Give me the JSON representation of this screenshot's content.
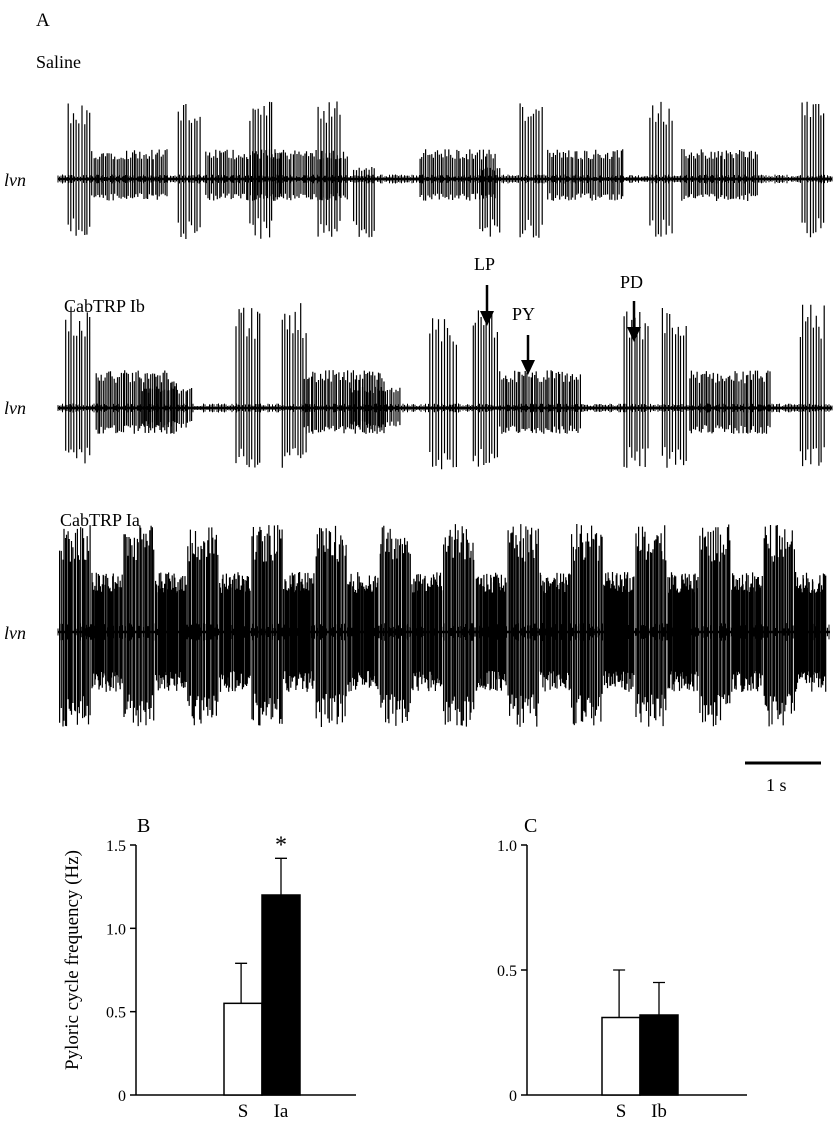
{
  "panel_a": {
    "letter": "A",
    "traces": [
      {
        "condition": "Saline",
        "nerve": "lvn"
      },
      {
        "condition": "CabTRP Ib",
        "nerve": "lvn"
      },
      {
        "condition": "CabTRP Ia",
        "nerve": "lvn"
      }
    ],
    "annotations": [
      {
        "label": "LP"
      },
      {
        "label": "PY"
      },
      {
        "label": "PD"
      }
    ],
    "scale_bar": {
      "label": "1 s",
      "value_s": 1
    }
  },
  "chart_data": [
    {
      "type": "bar",
      "panel": "B",
      "categories": [
        "S",
        "Ia"
      ],
      "values": [
        0.55,
        1.2
      ],
      "errors": [
        0.24,
        0.22
      ],
      "colors": [
        "#ffffff",
        "#000000"
      ],
      "significance": [
        "",
        "*"
      ],
      "ylabel": "Pyloric cycle frequency (Hz)",
      "xlabel": "",
      "ylim": [
        0,
        1.5
      ],
      "yticks": [
        "0",
        "0.5",
        "1.0",
        "1.5"
      ],
      "grid": false
    },
    {
      "type": "bar",
      "panel": "C",
      "categories": [
        "S",
        "Ib"
      ],
      "values": [
        0.31,
        0.32
      ],
      "errors": [
        0.19,
        0.13
      ],
      "colors": [
        "#ffffff",
        "#000000"
      ],
      "significance": [
        "",
        ""
      ],
      "ylabel": "",
      "xlabel": "",
      "ylim": [
        0,
        1.0
      ],
      "yticks": [
        "0",
        "0.5",
        "1.0"
      ],
      "grid": false
    }
  ]
}
